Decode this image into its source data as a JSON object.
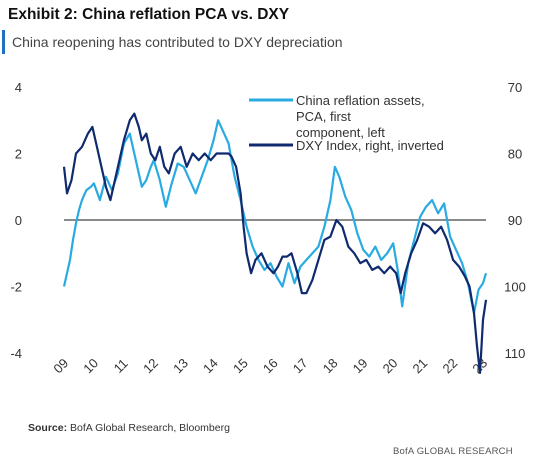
{
  "header": {
    "title": "Exhibit 2: China reflation PCA vs. DXY",
    "subtitle": "China reopening has contributed to DXY depreciation"
  },
  "source": {
    "label": "Source:",
    "text": "BofA Global Research, Bloomberg"
  },
  "footer": {
    "brand": "BofA GLOBAL RESEARCH"
  },
  "colors": {
    "pca": "#29abe2",
    "dxy": "#0f2a6e",
    "zero_line": "#444444",
    "accent": "#1f6fc5"
  },
  "chart_data": {
    "type": "line",
    "x_ticks": [
      "09",
      "10",
      "11",
      "12",
      "13",
      "14",
      "15",
      "16",
      "17",
      "18",
      "19",
      "20",
      "21",
      "22",
      "23"
    ],
    "x_range": [
      2009.0,
      2023.1
    ],
    "y_left": {
      "ticks": [
        "4",
        "2",
        "0",
        "-2",
        "-4"
      ],
      "range": [
        -4,
        4
      ]
    },
    "y_right": {
      "ticks": [
        "70",
        "80",
        "90",
        "100",
        "110"
      ],
      "range": [
        70,
        110
      ],
      "inverted": true
    },
    "legend_placement": "top-right",
    "grid": false,
    "series": [
      {
        "name": "China reflation  assets, PCA, first  component,  left",
        "axis": "left",
        "x": [
          2009.0,
          2009.1,
          2009.2,
          2009.3,
          2009.4,
          2009.5,
          2009.6,
          2009.75,
          2009.9,
          2010.0,
          2010.2,
          2010.4,
          2010.6,
          2010.8,
          2011.0,
          2011.2,
          2011.4,
          2011.6,
          2011.75,
          2011.9,
          2012.0,
          2012.2,
          2012.4,
          2012.6,
          2012.8,
          2013.0,
          2013.2,
          2013.4,
          2013.6,
          2013.8,
          2014.0,
          2014.15,
          2014.3,
          2014.5,
          2014.7,
          2014.9,
          2015.1,
          2015.3,
          2015.5,
          2015.7,
          2015.9,
          2016.1,
          2016.3,
          2016.5,
          2016.7,
          2016.9,
          2017.1,
          2017.3,
          2017.5,
          2017.7,
          2017.9,
          2018.05,
          2018.2,
          2018.4,
          2018.6,
          2018.8,
          2019.0,
          2019.2,
          2019.4,
          2019.6,
          2019.8,
          2020.0,
          2020.15,
          2020.3,
          2020.5,
          2020.7,
          2020.9,
          2021.1,
          2021.3,
          2021.5,
          2021.7,
          2021.9,
          2022.1,
          2022.3,
          2022.5,
          2022.7,
          2022.85,
          2023.0,
          2023.1
        ],
        "y": [
          -2.0,
          -1.6,
          -1.2,
          -0.6,
          -0.1,
          0.3,
          0.6,
          0.9,
          1.0,
          1.1,
          0.6,
          1.3,
          0.9,
          1.4,
          2.3,
          2.6,
          1.8,
          1.0,
          1.2,
          1.6,
          1.8,
          1.2,
          0.4,
          1.1,
          1.7,
          1.6,
          1.2,
          0.8,
          1.3,
          1.8,
          2.4,
          3.0,
          2.7,
          2.3,
          1.3,
          0.6,
          -0.2,
          -0.8,
          -1.2,
          -1.5,
          -1.3,
          -1.7,
          -2.0,
          -1.3,
          -1.9,
          -1.4,
          -1.2,
          -1.0,
          -0.8,
          -0.2,
          0.6,
          1.6,
          1.3,
          0.7,
          0.3,
          -0.4,
          -0.9,
          -1.1,
          -0.8,
          -1.2,
          -1.0,
          -0.7,
          -1.5,
          -2.6,
          -1.3,
          -0.6,
          0.1,
          0.4,
          0.6,
          0.2,
          0.5,
          -0.5,
          -0.9,
          -1.3,
          -1.9,
          -2.8,
          -2.1,
          -1.9,
          -1.6
        ]
      },
      {
        "name": "DXY Index, right,  inverted",
        "axis": "right",
        "x": [
          2009.0,
          2009.1,
          2009.25,
          2009.4,
          2009.6,
          2009.8,
          2009.95,
          2010.1,
          2010.25,
          2010.4,
          2010.55,
          2010.7,
          2010.85,
          2011.0,
          2011.2,
          2011.35,
          2011.5,
          2011.6,
          2011.75,
          2011.9,
          2012.05,
          2012.2,
          2012.35,
          2012.5,
          2012.7,
          2012.9,
          2013.1,
          2013.3,
          2013.5,
          2013.7,
          2013.9,
          2014.1,
          2014.3,
          2014.5,
          2014.6,
          2014.75,
          2014.9,
          2015.0,
          2015.1,
          2015.25,
          2015.4,
          2015.6,
          2015.8,
          2016.0,
          2016.15,
          2016.3,
          2016.45,
          2016.6,
          2016.8,
          2016.95,
          2017.1,
          2017.3,
          2017.5,
          2017.7,
          2017.9,
          2018.1,
          2018.3,
          2018.5,
          2018.7,
          2018.9,
          2019.1,
          2019.3,
          2019.5,
          2019.7,
          2019.9,
          2020.1,
          2020.25,
          2020.4,
          2020.6,
          2020.8,
          2021.0,
          2021.2,
          2021.4,
          2021.6,
          2021.8,
          2022.0,
          2022.2,
          2022.4,
          2022.55,
          2022.7,
          2022.8,
          2022.9,
          2023.0,
          2023.1
        ],
        "y": [
          82,
          86,
          84,
          80,
          79,
          77,
          76,
          79,
          82,
          85,
          87,
          84,
          81,
          78,
          75,
          74,
          76,
          78,
          77,
          80,
          81,
          79,
          82,
          83,
          80,
          79,
          82,
          80,
          81,
          80,
          81,
          80,
          80,
          80,
          80.5,
          82,
          86,
          91,
          95,
          98,
          96,
          95,
          97,
          98,
          97,
          95.5,
          95.5,
          95,
          98,
          101,
          101,
          99,
          96,
          93,
          92.5,
          90,
          91,
          94,
          95,
          96.5,
          96,
          97.5,
          97,
          98,
          97,
          98,
          101,
          98,
          95,
          93,
          90.5,
          91,
          92,
          91,
          93,
          96,
          97,
          98.5,
          100,
          104,
          109,
          113,
          105,
          102
        ]
      }
    ]
  }
}
